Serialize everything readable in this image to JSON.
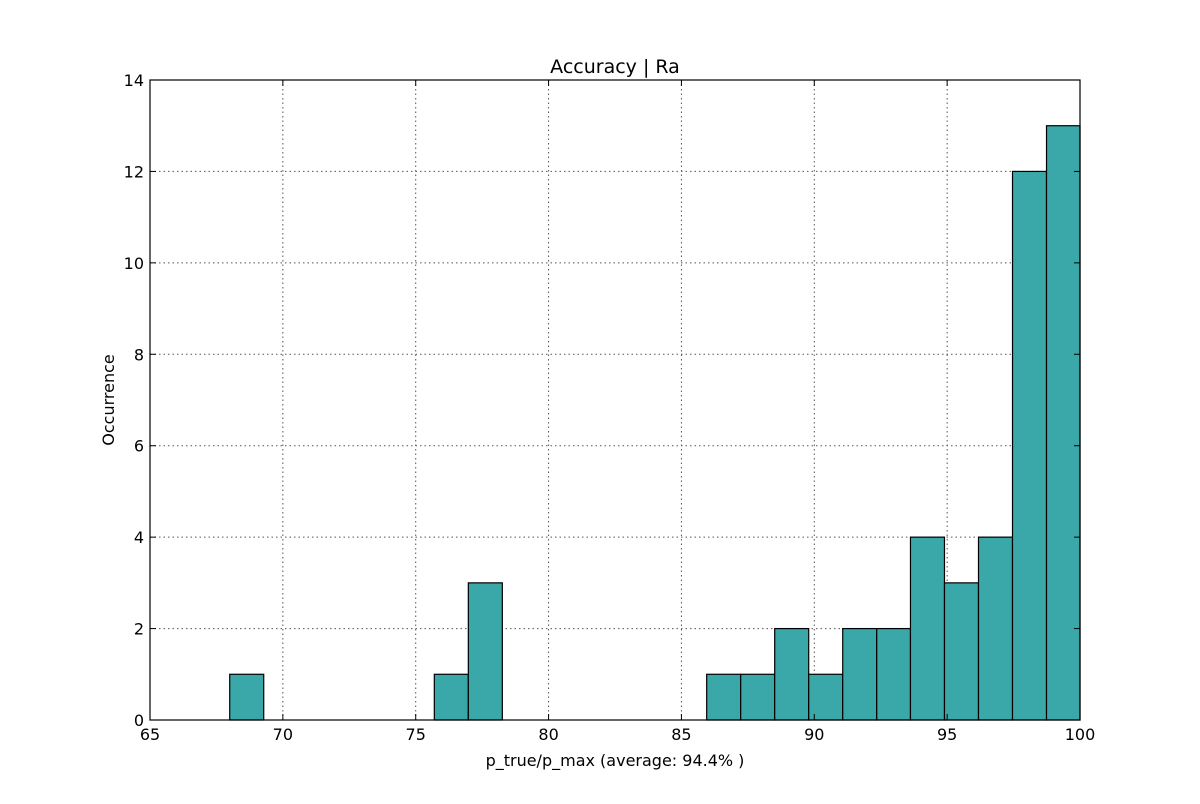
{
  "chart_data": {
    "type": "bar",
    "title": "Accuracy | Ra",
    "xlabel": "p_true/p_max (average: 94.4% )",
    "ylabel": "Occurrence",
    "xlim": [
      65,
      100
    ],
    "ylim": [
      0,
      14
    ],
    "xticks": [
      "65",
      "70",
      "75",
      "80",
      "85",
      "90",
      "95",
      "100"
    ],
    "yticks": [
      "0",
      "2",
      "4",
      "6",
      "8",
      "10",
      "12",
      "14"
    ],
    "grid": true,
    "bins": [
      {
        "x0": 68.0,
        "x1": 69.28,
        "count": 1
      },
      {
        "x0": 75.7,
        "x1": 76.98,
        "count": 1
      },
      {
        "x0": 76.98,
        "x1": 78.26,
        "count": 3
      },
      {
        "x0": 85.95,
        "x1": 87.23,
        "count": 1
      },
      {
        "x0": 87.23,
        "x1": 88.51,
        "count": 1
      },
      {
        "x0": 88.51,
        "x1": 89.79,
        "count": 2
      },
      {
        "x0": 89.79,
        "x1": 91.07,
        "count": 1
      },
      {
        "x0": 91.07,
        "x1": 92.35,
        "count": 2
      },
      {
        "x0": 92.35,
        "x1": 93.62,
        "count": 2
      },
      {
        "x0": 93.62,
        "x1": 94.9,
        "count": 4
      },
      {
        "x0": 94.9,
        "x1": 96.18,
        "count": 3
      },
      {
        "x0": 96.18,
        "x1": 97.46,
        "count": 4
      },
      {
        "x0": 97.46,
        "x1": 98.74,
        "count": 12
      },
      {
        "x0": 98.74,
        "x1": 100.0,
        "count": 13
      }
    ],
    "colors": {
      "bar_fill": "#3aa8a8",
      "bar_edge": "#000000",
      "grid": "#555555",
      "axes": "#000000"
    }
  }
}
